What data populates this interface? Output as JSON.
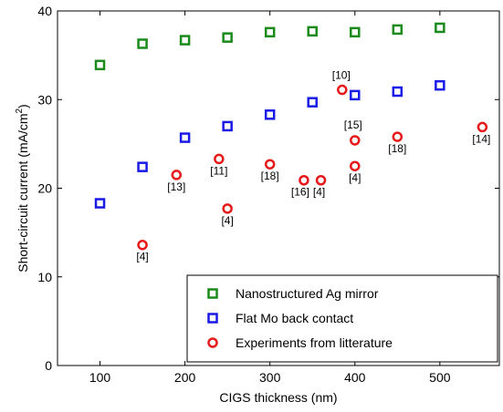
{
  "chart_data": {
    "type": "scatter",
    "xlabel": "CIGS thickness (nm)",
    "ylabel": "Short-circuit current (mA/cm",
    "ylabel_sup": "2",
    "ylabel_end": ")",
    "xlim": [
      50,
      570
    ],
    "ylim": [
      0,
      40
    ],
    "xticks": [
      100,
      200,
      300,
      400,
      500
    ],
    "yticks": [
      0,
      10,
      20,
      30,
      40
    ],
    "legend_position": "bottom-right",
    "series": [
      {
        "name": "Nanostructured Ag mirror",
        "marker": "square",
        "color": "#1a8a1a",
        "points": [
          [
            100,
            33.9
          ],
          [
            150,
            36.3
          ],
          [
            200,
            36.7
          ],
          [
            250,
            37.0
          ],
          [
            300,
            37.6
          ],
          [
            350,
            37.7
          ],
          [
            400,
            37.6
          ],
          [
            450,
            37.9
          ],
          [
            500,
            38.1
          ]
        ]
      },
      {
        "name": "Flat Mo back contact",
        "marker": "square",
        "color": "#1a1ae6",
        "points": [
          [
            100,
            18.3
          ],
          [
            150,
            22.4
          ],
          [
            200,
            25.7
          ],
          [
            250,
            27.0
          ],
          [
            300,
            28.3
          ],
          [
            350,
            29.7
          ],
          [
            400,
            30.5
          ],
          [
            450,
            30.9
          ],
          [
            500,
            31.6
          ]
        ]
      },
      {
        "name": "Experiments from litterature",
        "marker": "circle",
        "color": "#e61a1a",
        "points": [
          {
            "x": 150,
            "y": 13.6,
            "label": "[4]"
          },
          {
            "x": 190,
            "y": 21.5,
            "label": "[13]"
          },
          {
            "x": 240,
            "y": 23.3,
            "label": "[11]"
          },
          {
            "x": 250,
            "y": 17.7,
            "label": "[4]"
          },
          {
            "x": 300,
            "y": 22.7,
            "label": "[18]"
          },
          {
            "x": 340,
            "y": 20.9,
            "label": "[16]"
          },
          {
            "x": 360,
            "y": 20.9,
            "label": "[4]"
          },
          {
            "x": 385,
            "y": 31.1,
            "label": "[10]"
          },
          {
            "x": 400,
            "y": 25.4,
            "label": "[15]"
          },
          {
            "x": 400,
            "y": 22.5,
            "label": "[4]"
          },
          {
            "x": 450,
            "y": 25.8,
            "label": "[18]"
          },
          {
            "x": 550,
            "y": 26.9,
            "label": "[14]"
          }
        ]
      }
    ]
  }
}
